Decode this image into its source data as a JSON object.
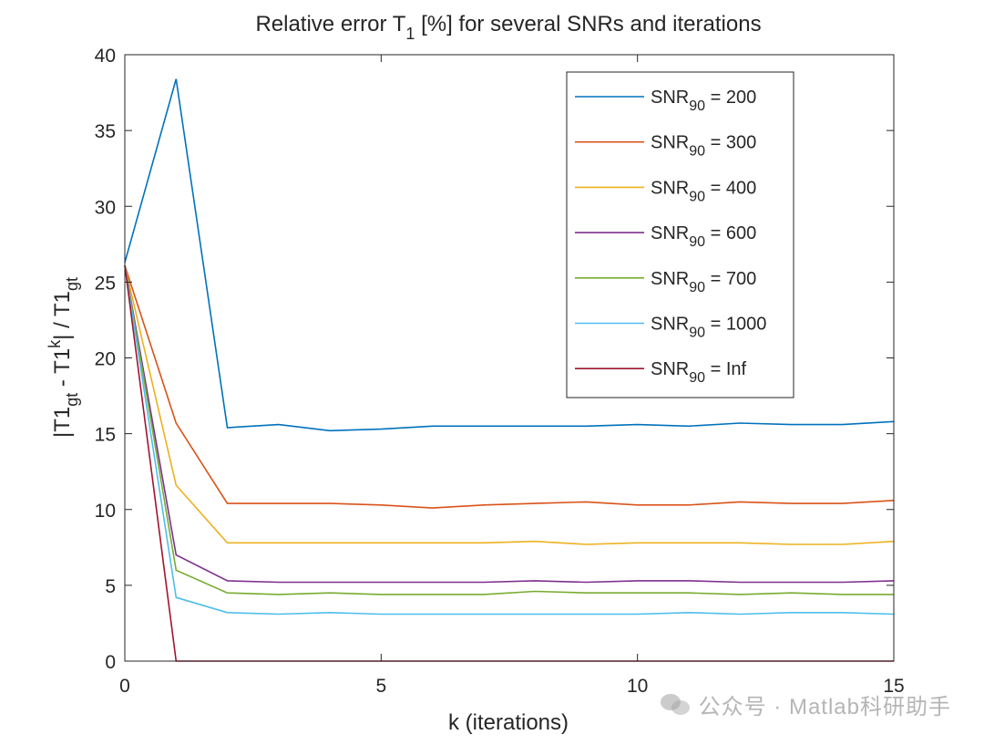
{
  "chart_data": {
    "type": "line",
    "title": "Relative error T",
    "title_sub": "1",
    "title_rest": " [%] for several SNRs and iterations",
    "xlabel": "k (iterations)",
    "ylabel_parts": [
      "|T1",
      "gt",
      " - T1",
      "k",
      "| / T1",
      "gt"
    ],
    "xlim": [
      0,
      15
    ],
    "ylim": [
      0,
      40
    ],
    "xticks": [
      0,
      5,
      10,
      15
    ],
    "yticks": [
      0,
      5,
      10,
      15,
      20,
      25,
      30,
      35,
      40
    ],
    "grid": false,
    "legend_position": "top-right",
    "x": [
      0,
      1,
      2,
      3,
      4,
      5,
      6,
      7,
      8,
      9,
      10,
      11,
      12,
      13,
      14,
      15
    ],
    "series": [
      {
        "name": "SNR",
        "sub": "90",
        "suffix": " = 200",
        "color": "#0072BD",
        "values": [
          26.3,
          38.4,
          15.4,
          15.6,
          15.2,
          15.3,
          15.5,
          15.5,
          15.5,
          15.5,
          15.6,
          15.5,
          15.7,
          15.6,
          15.6,
          15.8
        ]
      },
      {
        "name": "SNR",
        "sub": "90",
        "suffix": " = 300",
        "color": "#D95319",
        "values": [
          26.1,
          15.7,
          10.4,
          10.4,
          10.4,
          10.3,
          10.1,
          10.3,
          10.4,
          10.5,
          10.3,
          10.3,
          10.5,
          10.4,
          10.4,
          10.6
        ]
      },
      {
        "name": "SNR",
        "sub": "90",
        "suffix": " = 400",
        "color": "#EDB120",
        "values": [
          26.1,
          11.6,
          7.8,
          7.8,
          7.8,
          7.8,
          7.8,
          7.8,
          7.9,
          7.7,
          7.8,
          7.8,
          7.8,
          7.7,
          7.7,
          7.9
        ]
      },
      {
        "name": "SNR",
        "sub": "90",
        "suffix": " = 600",
        "color": "#7E2F8E",
        "values": [
          26.1,
          7.0,
          5.3,
          5.2,
          5.2,
          5.2,
          5.2,
          5.2,
          5.3,
          5.2,
          5.3,
          5.3,
          5.2,
          5.2,
          5.2,
          5.3
        ]
      },
      {
        "name": "SNR",
        "sub": "90",
        "suffix": " = 700",
        "color": "#77AC30",
        "values": [
          26.1,
          6.0,
          4.5,
          4.4,
          4.5,
          4.4,
          4.4,
          4.4,
          4.6,
          4.5,
          4.5,
          4.5,
          4.4,
          4.5,
          4.4,
          4.4
        ]
      },
      {
        "name": "SNR",
        "sub": "90",
        "suffix": " = 1000",
        "color": "#4DBEEE",
        "values": [
          26.1,
          4.2,
          3.2,
          3.1,
          3.2,
          3.1,
          3.1,
          3.1,
          3.1,
          3.1,
          3.1,
          3.2,
          3.1,
          3.2,
          3.2,
          3.1
        ]
      },
      {
        "name": "SNR",
        "sub": "90",
        "suffix": " = Inf",
        "color": "#A2142F",
        "values": [
          26.1,
          0.0,
          0.0,
          0.0,
          0.0,
          0.0,
          0.0,
          0.0,
          0.0,
          0.0,
          0.0,
          0.0,
          0.0,
          0.0,
          0.0,
          0.0
        ]
      }
    ]
  },
  "watermark": {
    "icon": "wechat-icon",
    "text": "公众号 · Matlab科研助手"
  }
}
